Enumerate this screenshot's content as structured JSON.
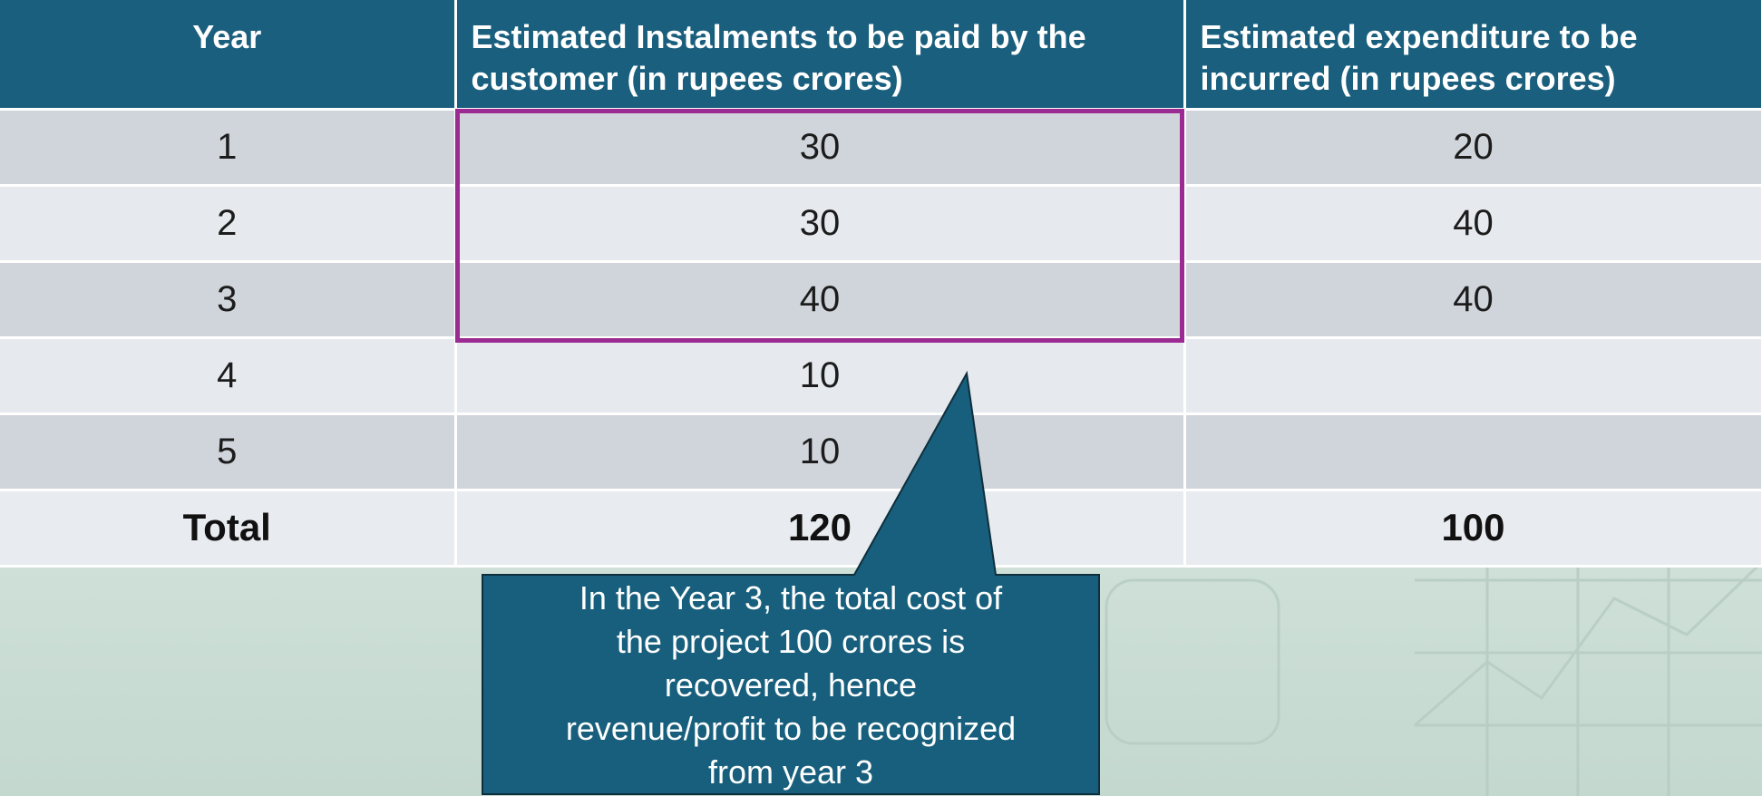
{
  "table": {
    "headers": [
      "Year",
      "Estimated Instalments to be  paid by the customer (in rupees crores)",
      "Estimated expenditure to be incurred (in rupees crores)"
    ],
    "rows": [
      {
        "year": "1",
        "instalment": "30",
        "expenditure": "20"
      },
      {
        "year": "2",
        "instalment": "30",
        "expenditure": "40"
      },
      {
        "year": "3",
        "instalment": "40",
        "expenditure": "40"
      },
      {
        "year": "4",
        "instalment": "10",
        "expenditure": ""
      },
      {
        "year": "5",
        "instalment": "10",
        "expenditure": ""
      }
    ],
    "total": {
      "label": "Total",
      "instalment": "120",
      "expenditure": "100"
    }
  },
  "callout": {
    "lines": [
      "In the Year 3, the total cost of",
      "the project 100 crores is",
      "recovered, hence",
      "revenue/profit to be recognized",
      "from year 3"
    ]
  },
  "colors": {
    "header_bg": "#1a5f7d",
    "highlight_border": "#9b2a92",
    "callout_bg": "#175f7c"
  }
}
